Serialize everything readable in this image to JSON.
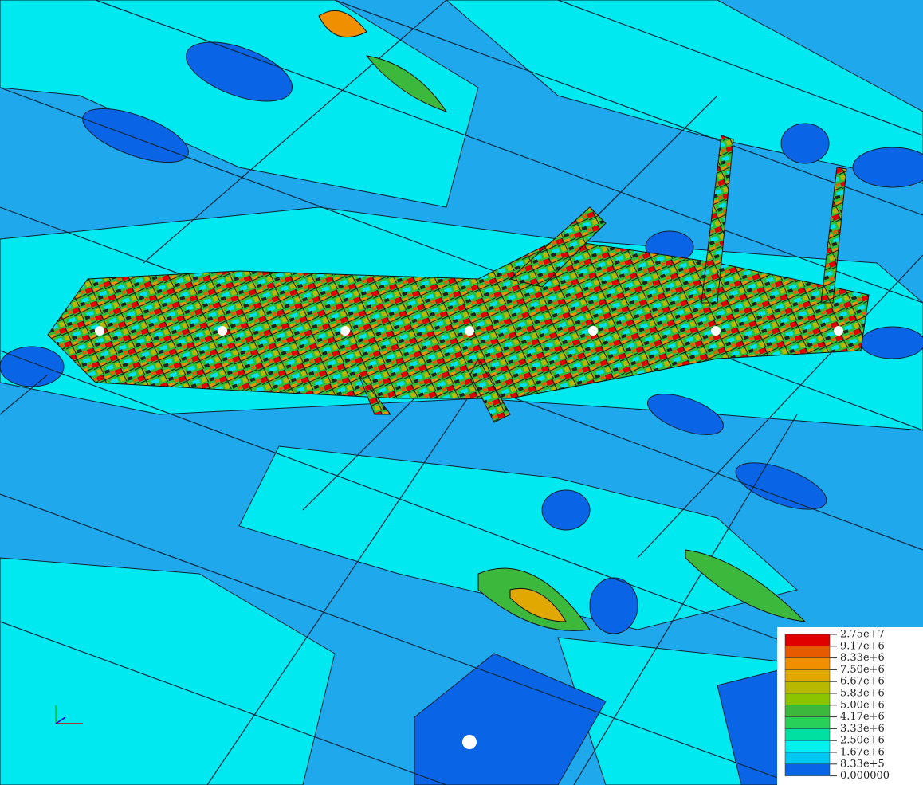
{
  "legend": {
    "labels": [
      "2.75e+7",
      "9.17e+6",
      "8.33e+6",
      "7.50e+6",
      "6.67e+6",
      "5.83e+6",
      "5.00e+6",
      "4.17e+6",
      "3.33e+6",
      "2.50e+6",
      "1.67e+6",
      "8.33e+5",
      "0.000000"
    ],
    "colors": [
      "#e00000",
      "#e85a00",
      "#f09000",
      "#e0a800",
      "#b8b800",
      "#8cc400",
      "#3cb83c",
      "#28d05a",
      "#00e0a0",
      "#00f0f0",
      "#00c8f0",
      "#0a64e6"
    ]
  }
}
